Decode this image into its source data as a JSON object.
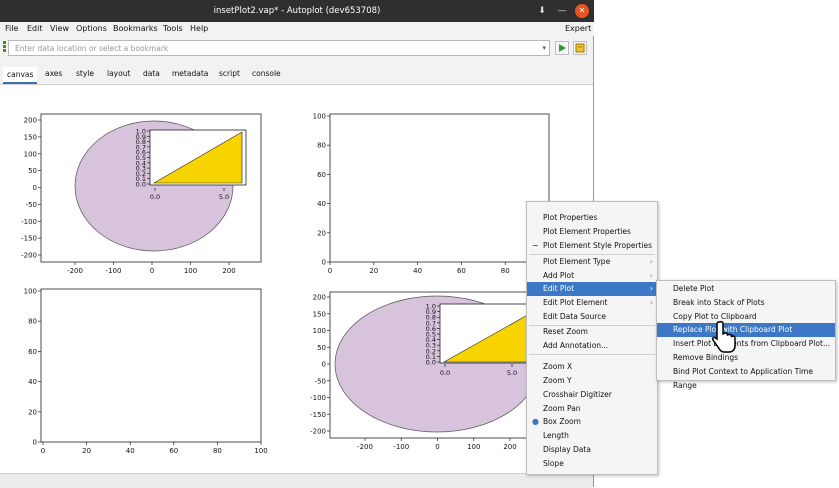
{
  "window": {
    "title": "insetPlot2.vap* - Autoplot (dev653708)"
  },
  "menubar": {
    "items": [
      "File",
      "Edit",
      "View",
      "Options",
      "Bookmarks",
      "Tools",
      "Help"
    ],
    "expert": "Expert"
  },
  "address": {
    "placeholder": "Enter data location or select a bookmark"
  },
  "tabs": [
    "canvas",
    "axes",
    "style",
    "layout",
    "data",
    "metadata",
    "script",
    "console"
  ],
  "plots": {
    "top_left": {
      "y_ticks": [
        "200",
        "150",
        "100",
        "50",
        "0",
        "-50",
        "-100",
        "-150",
        "-200"
      ],
      "x_ticks": [
        "-200",
        "-100",
        "0",
        "100",
        "200"
      ]
    },
    "top_left_inset": {
      "y_ticks": [
        "1.0",
        "0.9",
        "0.8",
        "0.7",
        "0.6",
        "0.5",
        "0.4",
        "0.3",
        "0.2",
        "0.1",
        "0.0"
      ],
      "x_ticks": [
        "0.0",
        "5.0"
      ]
    },
    "top_right": {
      "y_ticks": [
        "100",
        "80",
        "60",
        "40",
        "20",
        "0"
      ],
      "x_ticks": [
        "0",
        "20",
        "40",
        "60",
        "80",
        "100"
      ]
    },
    "bottom_left": {
      "y_ticks": [
        "100",
        "80",
        "60",
        "40",
        "20",
        "0"
      ],
      "x_ticks": [
        "0",
        "20",
        "40",
        "60",
        "80",
        "100"
      ]
    },
    "bottom_right": {
      "y_ticks": [
        "200",
        "150",
        "100",
        "50",
        "0",
        "-50",
        "-100",
        "-150",
        "-200"
      ],
      "x_ticks": [
        "-200",
        "-100",
        "0",
        "100",
        "200"
      ]
    },
    "bottom_right_inset": {
      "y_ticks": [
        "1.0",
        "0.9",
        "0.8",
        "0.7",
        "0.6",
        "0.5",
        "0.4",
        "0.3",
        "0.2",
        "0.1",
        "0.0"
      ],
      "x_ticks": [
        "0.0",
        "5.0"
      ]
    }
  },
  "context_menu": {
    "items": [
      "Plot Properties",
      "Plot Element Properties",
      "Plot Element Style Properties",
      "Plot Element Type",
      "Add Plot",
      "Edit Plot",
      "Edit Plot Element",
      "Edit Data Source",
      "Reset Zoom",
      "Add Annotation...",
      "Zoom X",
      "Zoom Y",
      "Crosshair Digitizer",
      "Zoom Pan",
      "Box Zoom",
      "Length",
      "Display Data",
      "Slope"
    ]
  },
  "submenu": {
    "items": [
      "Delete Plot",
      "Break into Stack of Plots",
      "Copy Plot to Clipboard",
      "Replace Plot with Clipboard Plot",
      "Insert Plot Elements from Clipboard Plot...",
      "Remove Bindings",
      "Bind Plot Context to Application Time Range"
    ]
  },
  "colors": {
    "ellipse": "#d8c3dc",
    "triangle": "#f7d400",
    "highlight": "#3c78c5"
  }
}
